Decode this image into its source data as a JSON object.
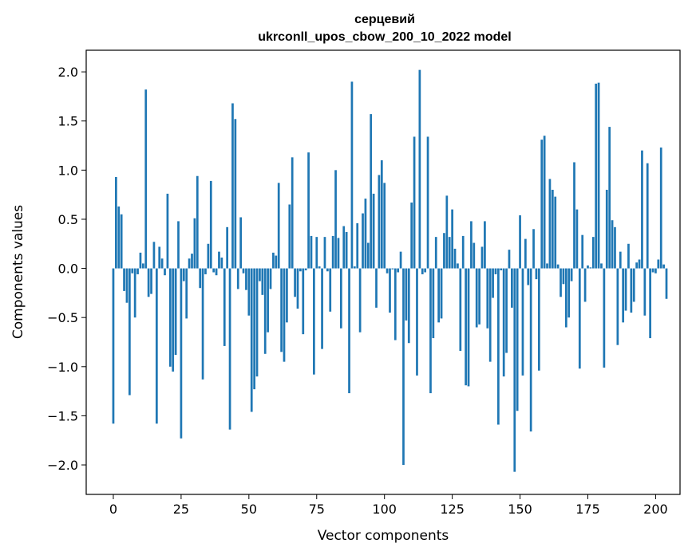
{
  "chart_data": {
    "type": "bar",
    "title_line1": "серцевий",
    "title_line2": "ukrconll_upos_cbow_200_10_2022 model",
    "xlabel": "Vector components",
    "ylabel": "Components values",
    "xlim": [
      -10,
      209
    ],
    "ylim": [
      -2.3,
      2.22
    ],
    "xticks": [
      0,
      25,
      50,
      75,
      100,
      125,
      150,
      175,
      200
    ],
    "xtick_labels": [
      "0",
      "25",
      "50",
      "75",
      "100",
      "125",
      "150",
      "175",
      "200"
    ],
    "yticks": [
      2.0,
      1.5,
      1.0,
      0.5,
      0.0,
      -0.5,
      -1.0,
      -1.5,
      -2.0
    ],
    "ytick_labels": [
      "2.0",
      "1.5",
      "1.0",
      "0.5",
      "0.0",
      "−0.5",
      "−1.0",
      "−1.5",
      "−2.0"
    ],
    "bar_color": "#1f77b4",
    "values": [
      -1.58,
      0.93,
      0.63,
      0.55,
      -0.23,
      -0.35,
      -1.29,
      -0.05,
      -0.5,
      -0.06,
      0.16,
      0.05,
      1.82,
      -0.29,
      -0.26,
      0.27,
      -1.58,
      0.22,
      0.1,
      -0.07,
      0.76,
      -1.0,
      -1.05,
      -0.88,
      0.48,
      -1.73,
      -0.13,
      -0.51,
      0.1,
      0.15,
      0.51,
      0.94,
      -0.2,
      -1.13,
      -0.06,
      0.25,
      0.89,
      -0.04,
      -0.07,
      0.17,
      0.11,
      -0.79,
      0.42,
      -1.64,
      1.68,
      1.52,
      -0.21,
      0.52,
      -0.05,
      -0.22,
      -0.48,
      -1.46,
      -1.23,
      -1.1,
      -0.13,
      -0.27,
      -0.87,
      -0.65,
      -0.21,
      0.16,
      0.13,
      0.87,
      -0.85,
      -0.95,
      -0.55,
      0.65,
      1.13,
      -0.29,
      -0.41,
      -0.03,
      -0.67,
      -0.02,
      1.18,
      0.33,
      -1.08,
      0.32,
      0.02,
      -0.82,
      0.32,
      -0.03,
      -0.44,
      0.33,
      1.0,
      0.31,
      -0.61,
      0.43,
      0.37,
      -1.27,
      1.9,
      0.02,
      0.46,
      -0.65,
      0.56,
      0.71,
      0.26,
      1.57,
      0.76,
      -0.4,
      0.95,
      1.1,
      0.87,
      -0.05,
      -0.45,
      -0.01,
      -0.73,
      -0.04,
      0.17,
      -2.0,
      -0.53,
      -0.76,
      0.67,
      1.34,
      -1.09,
      2.02,
      -0.06,
      -0.04,
      1.34,
      -1.27,
      -0.71,
      0.32,
      -0.55,
      -0.51,
      0.36,
      0.74,
      0.32,
      0.6,
      0.2,
      0.05,
      -0.84,
      0.33,
      -1.19,
      -1.2,
      0.48,
      0.26,
      -0.6,
      -0.57,
      0.22,
      0.48,
      -0.61,
      -0.95,
      -0.3,
      -0.06,
      -1.59,
      -0.02,
      -1.1,
      -0.86,
      0.19,
      -0.4,
      -2.07,
      -1.45,
      0.54,
      -1.09,
      0.3,
      -0.17,
      -1.66,
      0.4,
      -0.11,
      -1.04,
      1.31,
      1.35,
      0.05,
      0.91,
      0.8,
      0.73,
      0.04,
      -0.29,
      -0.16,
      -0.6,
      -0.5,
      -0.13,
      1.08,
      0.6,
      -1.02,
      0.34,
      -0.34,
      0.03,
      0.01,
      0.32,
      1.88,
      1.89,
      0.05,
      -1.01,
      0.8,
      1.44,
      0.49,
      0.42,
      -0.78,
      0.17,
      -0.55,
      -0.43,
      0.25,
      -0.45,
      -0.34,
      0.06,
      0.09,
      1.2,
      -0.48,
      1.07,
      -0.71,
      -0.04,
      -0.05,
      0.09,
      1.23,
      0.04,
      -0.31
    ]
  }
}
